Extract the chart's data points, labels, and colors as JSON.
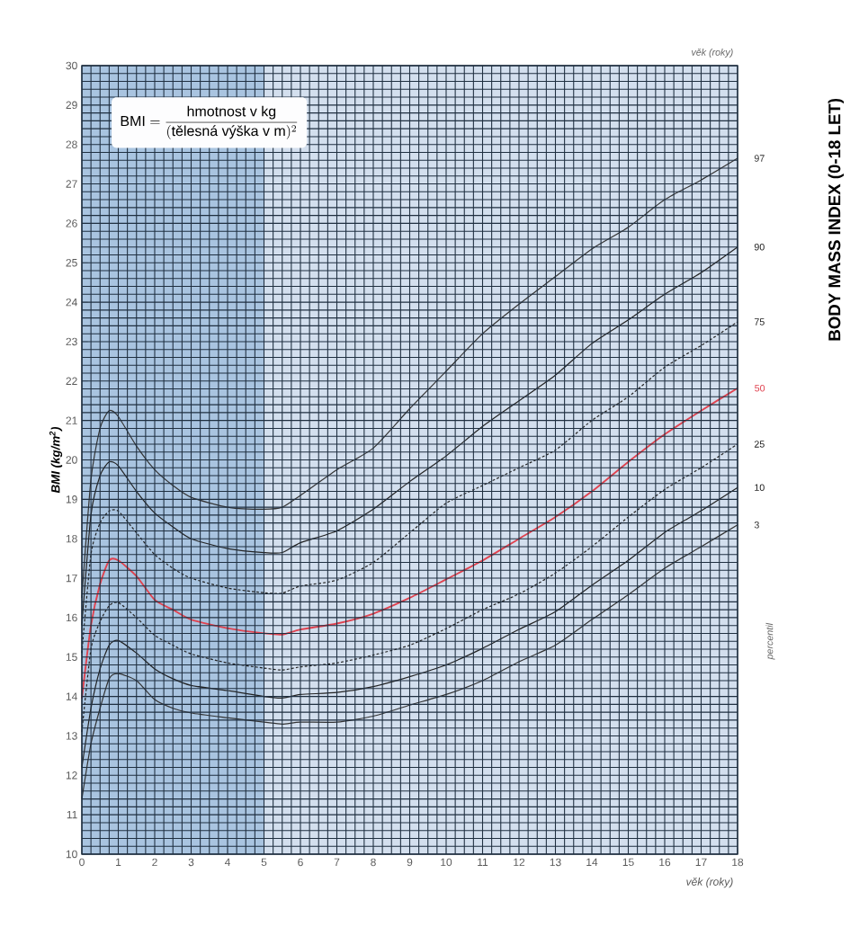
{
  "chart_data": {
    "type": "line",
    "title": "BODY MASS INDEX (0-18 LET)",
    "xlabel": "věk (roky)",
    "ylabel": "BMI (kg/m$^{2}$)",
    "legend_title": "percentil",
    "annotations": [
      "věk (roky)",
      "\\mathrm{BMI}=\\frac{\\text{hmotnost v kg}}{(\\text{tělesná výška v m})^{2}}"
    ],
    "x": [
      0,
      0.25,
      0.5,
      0.75,
      1,
      1.5,
      2,
      2.5,
      3,
      4,
      5,
      5.5,
      6,
      7,
      8,
      9,
      10,
      11,
      12,
      13,
      14,
      15,
      16,
      17,
      18
    ],
    "series": [
      {
        "name": "97",
        "color": "#333333",
        "values": [
          16.5,
          19.5,
          20.8,
          21.25,
          21.1,
          20.35,
          19.75,
          19.35,
          19.05,
          18.8,
          18.75,
          18.8,
          19.1,
          19.75,
          20.3,
          21.3,
          22.25,
          23.2,
          23.95,
          24.65,
          25.35,
          25.9,
          26.6,
          27.1,
          27.65
        ]
      },
      {
        "name": "90",
        "color": "#222222",
        "values": [
          15.8,
          18.6,
          19.6,
          19.95,
          19.85,
          19.2,
          18.65,
          18.3,
          18.0,
          17.75,
          17.65,
          17.65,
          17.9,
          18.2,
          18.75,
          19.45,
          20.1,
          20.85,
          21.5,
          22.15,
          22.95,
          23.55,
          24.2,
          24.75,
          25.4
        ]
      },
      {
        "name": "75",
        "color": "#222222",
        "line_style": "dashed",
        "values": [
          15.1,
          17.6,
          18.4,
          18.7,
          18.7,
          18.15,
          17.6,
          17.25,
          17.0,
          16.75,
          16.63,
          16.62,
          16.8,
          16.95,
          17.4,
          18.15,
          18.9,
          19.35,
          19.8,
          20.25,
          21.0,
          21.6,
          22.35,
          22.9,
          23.5
        ]
      },
      {
        "name": "50",
        "color": "#e0424f",
        "values": [
          13.95,
          15.8,
          16.85,
          17.45,
          17.45,
          17.05,
          16.45,
          16.2,
          15.95,
          15.73,
          15.6,
          15.57,
          15.7,
          15.85,
          16.1,
          16.5,
          16.97,
          17.45,
          18.0,
          18.55,
          19.2,
          19.95,
          20.65,
          21.25,
          21.82
        ]
      },
      {
        "name": "25",
        "color": "#222222",
        "line_style": "dashed",
        "values": [
          13.1,
          15.2,
          15.9,
          16.3,
          16.38,
          16.0,
          15.55,
          15.3,
          15.08,
          14.85,
          14.72,
          14.67,
          14.75,
          14.85,
          15.05,
          15.3,
          15.72,
          16.2,
          16.6,
          17.13,
          17.8,
          18.55,
          19.25,
          19.8,
          20.4
        ]
      },
      {
        "name": "10",
        "color": "#222222",
        "values": [
          12.2,
          13.7,
          14.7,
          15.3,
          15.42,
          15.1,
          14.7,
          14.45,
          14.28,
          14.15,
          14.0,
          13.96,
          14.05,
          14.1,
          14.25,
          14.5,
          14.8,
          15.22,
          15.7,
          16.15,
          16.82,
          17.45,
          18.16,
          18.71,
          19.3
        ]
      },
      {
        "name": "3",
        "color": "#333333",
        "values": [
          11.4,
          12.8,
          13.7,
          14.45,
          14.58,
          14.4,
          13.92,
          13.7,
          13.58,
          13.46,
          13.35,
          13.3,
          13.35,
          13.35,
          13.5,
          13.78,
          14.05,
          14.4,
          14.88,
          15.3,
          15.95,
          16.58,
          17.25,
          17.8,
          18.35
        ]
      }
    ],
    "xlim": [
      0,
      18
    ],
    "ylim": [
      10,
      30
    ],
    "xticks": [
      0,
      {
        "value": 0.25,
        "label": null
      },
      {
        "value": 0.5,
        "label": null
      },
      {
        "value": 0.75,
        "label": null
      },
      1,
      {
        "value": 1.25,
        "label": null
      },
      {
        "value": 1.5,
        "label": null
      },
      {
        "value": 1.75,
        "label": null
      },
      2,
      {
        "value": 2.25,
        "label": null
      },
      {
        "value": 2.5,
        "label": null
      },
      {
        "value": 2.75,
        "label": null
      },
      3,
      {
        "value": 3.25,
        "label": null
      },
      {
        "value": 3.5,
        "label": null
      },
      {
        "value": 3.75,
        "label": null
      },
      4,
      {
        "value": 4.25,
        "label": null
      },
      {
        "value": 4.5,
        "label": null
      },
      {
        "value": 4.75,
        "label": null
      },
      5,
      {
        "value": 5.25,
        "label": null
      },
      {
        "value": 5.5,
        "label": null
      },
      {
        "value": 5.75,
        "label": null
      },
      6,
      {
        "value": 6.25,
        "label": null
      },
      {
        "value": 6.5,
        "label": null
      },
      {
        "value": 6.75,
        "label": null
      },
      7,
      {
        "value": 7.25,
        "label": null
      },
      {
        "value": 7.5,
        "label": null
      },
      {
        "value": 7.75,
        "label": null
      },
      8,
      {
        "value": 8.25,
        "label": null
      },
      {
        "value": 8.5,
        "label": null
      },
      {
        "value": 8.75,
        "label": null
      },
      9,
      {
        "value": 9.25,
        "label": null
      },
      {
        "value": 9.5,
        "label": null
      },
      {
        "value": 9.75,
        "label": null
      },
      10,
      {
        "value": 10.25,
        "label": null
      },
      {
        "value": 10.5,
        "label": null
      },
      {
        "value": 10.75,
        "label": null
      },
      11,
      {
        "value": 11.25,
        "label": null
      },
      {
        "value": 11.5,
        "label": null
      },
      {
        "value": 11.75,
        "label": null
      },
      12,
      {
        "value": 12.25,
        "label": null
      },
      {
        "value": 12.5,
        "label": null
      },
      {
        "value": 12.75,
        "label": null
      },
      13,
      {
        "value": 13.25,
        "label": null
      },
      {
        "value": 13.5,
        "label": null
      },
      {
        "value": 13.75,
        "label": null
      },
      14,
      {
        "value": 14.25,
        "label": null
      },
      {
        "value": 14.5,
        "label": null
      },
      {
        "value": 14.75,
        "label": null
      },
      15,
      {
        "value": 15.25,
        "label": null
      },
      {
        "value": 15.5,
        "label": null
      },
      {
        "value": 15.75,
        "label": null
      },
      16,
      {
        "value": 16.25,
        "label": null
      },
      {
        "value": 16.5,
        "label": null
      },
      {
        "value": 16.75,
        "label": null
      },
      17,
      {
        "value": 17.25,
        "label": null
      },
      {
        "value": 17.5,
        "label": null
      },
      {
        "value": 17.75,
        "label": null
      },
      18
    ],
    "yticks": [
      10,
      {
        "value": 10.2,
        "label": null
      },
      {
        "value": 10.4,
        "label": null
      },
      {
        "value": 10.6,
        "label": null
      },
      {
        "value": 10.8,
        "label": null
      },
      11,
      {
        "value": 11.2,
        "label": null
      },
      {
        "value": 11.4,
        "label": null
      },
      {
        "value": 11.6,
        "label": null
      },
      {
        "value": 11.8,
        "label": null
      },
      12,
      {
        "value": 12.2,
        "label": null
      },
      {
        "value": 12.4,
        "label": null
      },
      {
        "value": 12.6,
        "label": null
      },
      {
        "value": 12.8,
        "label": null
      },
      13,
      {
        "value": 13.2,
        "label": null
      },
      {
        "value": 13.4,
        "label": null
      },
      {
        "value": 13.6,
        "label": null
      },
      {
        "value": 13.8,
        "label": null
      },
      14,
      {
        "value": 14.2,
        "label": null
      },
      {
        "value": 14.4,
        "label": null
      },
      {
        "value": 14.6,
        "label": null
      },
      {
        "value": 14.8,
        "label": null
      },
      15,
      {
        "value": 15.2,
        "label": null
      },
      {
        "value": 15.4,
        "label": null
      },
      {
        "value": 15.6,
        "label": null
      },
      {
        "value": 15.8,
        "label": null
      },
      16,
      {
        "value": 16.2,
        "label": null
      },
      {
        "value": 16.4,
        "label": null
      },
      {
        "value": 16.6,
        "label": null
      },
      {
        "value": 16.8,
        "label": null
      },
      17,
      {
        "value": 17.2,
        "label": null
      },
      {
        "value": 17.4,
        "label": null
      },
      {
        "value": 17.6,
        "label": null
      },
      {
        "value": 17.8,
        "label": null
      },
      18,
      {
        "value": 18.2,
        "label": null
      },
      {
        "value": 18.4,
        "label": null
      },
      {
        "value": 18.6,
        "label": null
      },
      {
        "value": 18.8,
        "label": null
      },
      19,
      {
        "value": 19.2,
        "label": null
      },
      {
        "value": 19.4,
        "label": null
      },
      {
        "value": 19.6,
        "label": null
      },
      {
        "value": 19.8,
        "label": null
      },
      20,
      {
        "value": 20.2,
        "label": null
      },
      {
        "value": 20.4,
        "label": null
      },
      {
        "value": 20.6,
        "label": null
      },
      {
        "value": 20.8,
        "label": null
      },
      21,
      {
        "value": 21.2,
        "label": null
      },
      {
        "value": 21.4,
        "label": null
      },
      {
        "value": 21.6,
        "label": null
      },
      {
        "value": 21.8,
        "label": null
      },
      22,
      {
        "value": 22.2,
        "label": null
      },
      {
        "value": 22.4,
        "label": null
      },
      {
        "value": 22.6,
        "label": null
      },
      {
        "value": 22.8,
        "label": null
      },
      23,
      {
        "value": 23.2,
        "label": null
      },
      {
        "value": 23.4,
        "label": null
      },
      {
        "value": 23.6,
        "label": null
      },
      {
        "value": 23.8,
        "label": null
      },
      24,
      {
        "value": 24.2,
        "label": null
      },
      {
        "value": 24.4,
        "label": null
      },
      {
        "value": 24.6,
        "label": null
      },
      {
        "value": 24.8,
        "label": null
      },
      25,
      {
        "value": 25.2,
        "label": null
      },
      {
        "value": 25.4,
        "label": null
      },
      {
        "value": 25.6,
        "label": null
      },
      {
        "value": 25.8,
        "label": null
      },
      26,
      {
        "value": 26.2,
        "label": null
      },
      {
        "value": 26.4,
        "label": null
      },
      {
        "value": 26.6,
        "label": null
      },
      {
        "value": 26.8,
        "label": null
      },
      27,
      {
        "value": 27.2,
        "label": null
      },
      {
        "value": 27.4,
        "label": null
      },
      {
        "value": 27.6,
        "label": null
      },
      {
        "value": 27.8,
        "label": null
      },
      28,
      {
        "value": 28.2,
        "label": null
      },
      {
        "value": 28.4,
        "label": null
      },
      {
        "value": 28.6,
        "label": null
      },
      {
        "value": 28.8,
        "label": null
      },
      29,
      {
        "value": 29.2,
        "label": null
      },
      {
        "value": 29.4,
        "label": null
      },
      {
        "value": 29.6,
        "label": null
      },
      {
        "value": 29.8,
        "label": null
      },
      30
    ],
    "bands": [
      {
        "axis": "x",
        "from": 0,
        "to": 5,
        "color": "#a9c4e0"
      }
    ],
    "grid": true,
    "line_style": "solid"
  }
}
